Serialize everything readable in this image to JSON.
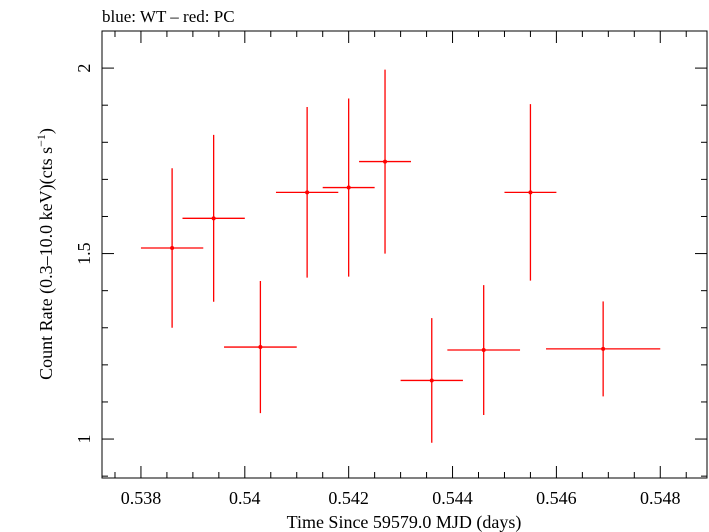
{
  "chart_data": {
    "type": "scatter",
    "title": "blue: WT – red: PC",
    "xlabel": "Time Since 59579.0 MJD (days)",
    "ylabel_main": "Count Rate (0.3–10.0 keV)(cts s",
    "ylabel_sup": "−1",
    "ylabel_close": ")",
    "xlim": [
      0.53725,
      0.5489
    ],
    "ylim": [
      0.895,
      2.1
    ],
    "x_ticks": [
      {
        "value": 0.538,
        "label": "0.538"
      },
      {
        "value": 0.54,
        "label": "0.54"
      },
      {
        "value": 0.542,
        "label": "0.542"
      },
      {
        "value": 0.544,
        "label": "0.544"
      },
      {
        "value": 0.546,
        "label": "0.546"
      },
      {
        "value": 0.548,
        "label": "0.548"
      }
    ],
    "y_ticks": [
      {
        "value": 1,
        "label": "1"
      },
      {
        "value": 1.5,
        "label": "1.5"
      },
      {
        "value": 2,
        "label": "2"
      }
    ],
    "series": [
      {
        "name": "PC",
        "color": "#ff0000",
        "points": [
          {
            "x": 0.5386,
            "xerr": 0.0006,
            "y": 1.515,
            "yerr": 0.215
          },
          {
            "x": 0.5394,
            "xerr": 0.0006,
            "y": 1.595,
            "yerr": 0.225
          },
          {
            "x": 0.5403,
            "xerr": 0.0007,
            "y": 1.248,
            "yerr": 0.178
          },
          {
            "x": 0.5412,
            "xerr": 0.0006,
            "y": 1.665,
            "yerr": 0.23
          },
          {
            "x": 0.542,
            "xerr": 0.0005,
            "y": 1.678,
            "yerr": 0.24
          },
          {
            "x": 0.5427,
            "xerr": 0.0005,
            "y": 1.748,
            "yerr": 0.248
          },
          {
            "x": 0.5436,
            "xerr": 0.0006,
            "y": 1.158,
            "yerr": 0.168
          },
          {
            "x": 0.5446,
            "xerr": 0.0007,
            "y": 1.24,
            "yerr": 0.175
          },
          {
            "x": 0.5455,
            "xerr": 0.0005,
            "y": 1.665,
            "yerr": 0.238
          },
          {
            "x": 0.5469,
            "xerr": 0.0011,
            "y": 1.243,
            "yerr": 0.128
          }
        ]
      }
    ]
  }
}
